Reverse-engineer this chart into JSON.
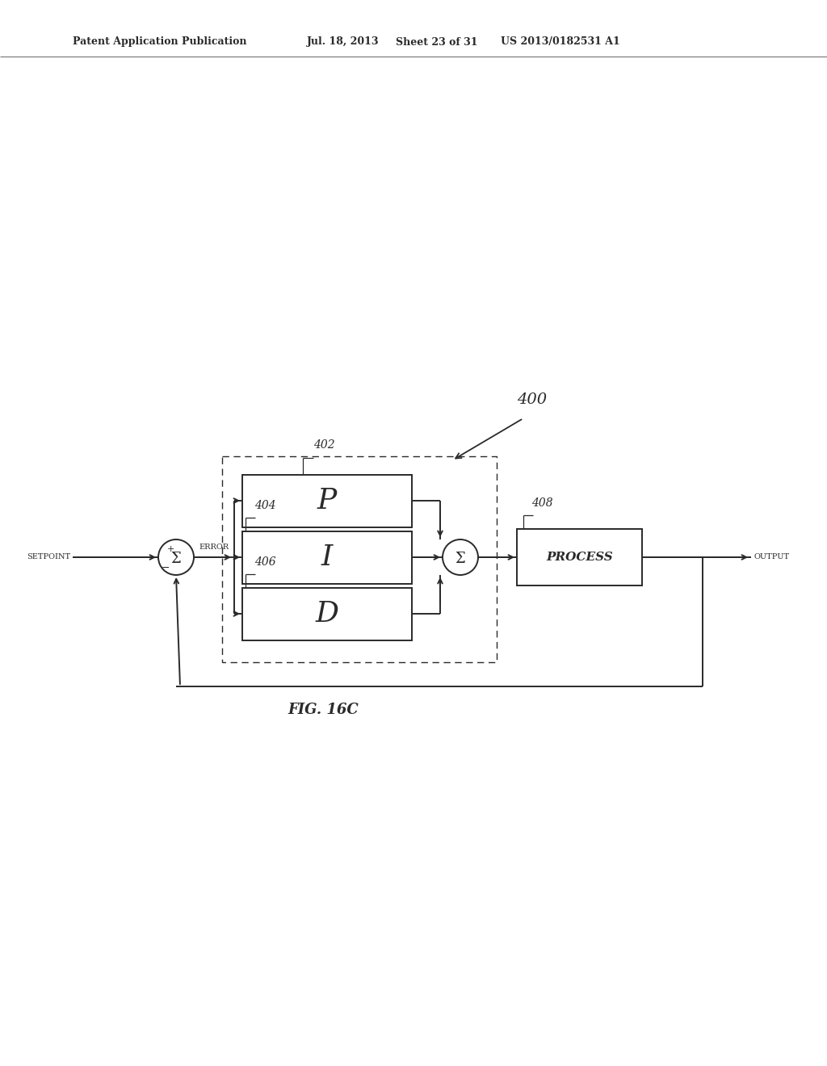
{
  "bg_color": "#ffffff",
  "line_color": "#2a2a2a",
  "header_left": "Patent Application Publication",
  "header_mid": "Jul. 18, 2013",
  "header_sheet": "Sheet 23 of 31",
  "header_right": "US 2013/0182531 A1",
  "fig_label": "FIG. 16C",
  "label_400": "400",
  "label_402": "402",
  "label_404": "404",
  "label_406": "406",
  "label_408": "408",
  "block_P_label": "P",
  "block_I_label": "I",
  "block_D_label": "D",
  "block_process_label": "PROCESS",
  "sum_label": "Σ",
  "text_setpoint": "SETPOINT",
  "text_error": "ERROR",
  "text_output": "OUTPUT"
}
